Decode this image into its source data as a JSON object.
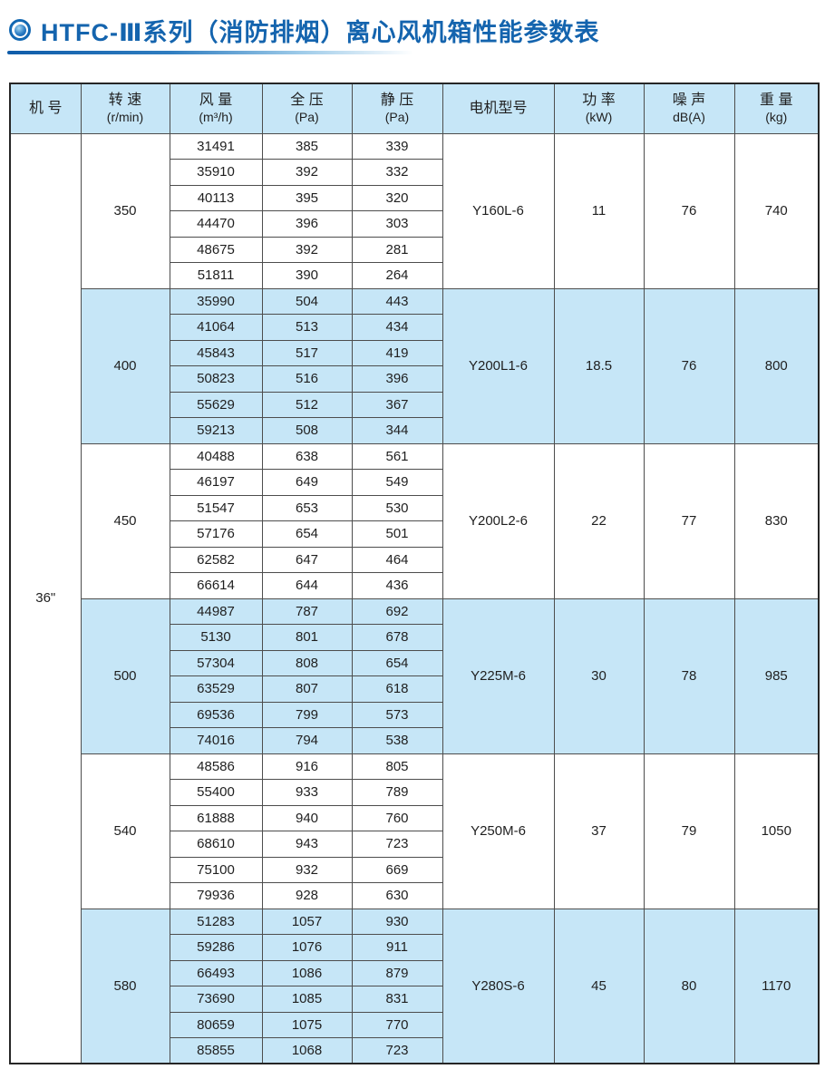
{
  "title": {
    "icon": "concentric-circle-bullet-icon",
    "text": "HTFC-Ⅲ系列（消防排烟）离心风机箱性能参数表"
  },
  "colors": {
    "accent_blue": "#1464ae",
    "band_blue": "#c6e6f7",
    "grid_line": "#4d4d4d"
  },
  "table": {
    "headers": [
      {
        "line1": "机 号",
        "line2": ""
      },
      {
        "line1": "转 速",
        "line2": "(r/min)"
      },
      {
        "line1": "风 量",
        "line2": "(m³/h)"
      },
      {
        "line1": "全 压",
        "line2": "(Pa)"
      },
      {
        "line1": "静 压",
        "line2": "(Pa)"
      },
      {
        "line1": "电机型号",
        "line2": ""
      },
      {
        "line1": "功 率",
        "line2": "(kW)"
      },
      {
        "line1": "噪 声",
        "line2": "dB(A)"
      },
      {
        "line1": "重 量",
        "line2": "(kg)"
      }
    ],
    "machine_no": "36\"",
    "groups": [
      {
        "speed": "350",
        "motor": "Y160L-6",
        "power": "11",
        "noise": "76",
        "weight": "740",
        "shaded": false,
        "rows": [
          [
            31491,
            385,
            339
          ],
          [
            35910,
            392,
            332
          ],
          [
            40113,
            395,
            320
          ],
          [
            44470,
            396,
            303
          ],
          [
            48675,
            392,
            281
          ],
          [
            51811,
            390,
            264
          ]
        ]
      },
      {
        "speed": "400",
        "motor": "Y200L1-6",
        "power": "18.5",
        "noise": "76",
        "weight": "800",
        "shaded": true,
        "rows": [
          [
            35990,
            504,
            443
          ],
          [
            41064,
            513,
            434
          ],
          [
            45843,
            517,
            419
          ],
          [
            50823,
            516,
            396
          ],
          [
            55629,
            512,
            367
          ],
          [
            59213,
            508,
            344
          ]
        ]
      },
      {
        "speed": "450",
        "motor": "Y200L2-6",
        "power": "22",
        "noise": "77",
        "weight": "830",
        "shaded": false,
        "rows": [
          [
            40488,
            638,
            561
          ],
          [
            46197,
            649,
            549
          ],
          [
            51547,
            653,
            530
          ],
          [
            57176,
            654,
            501
          ],
          [
            62582,
            647,
            464
          ],
          [
            66614,
            644,
            436
          ]
        ]
      },
      {
        "speed": "500",
        "motor": "Y225M-6",
        "power": "30",
        "noise": "78",
        "weight": "985",
        "shaded": true,
        "rows": [
          [
            44987,
            787,
            692
          ],
          [
            5130,
            801,
            678
          ],
          [
            57304,
            808,
            654
          ],
          [
            63529,
            807,
            618
          ],
          [
            69536,
            799,
            573
          ],
          [
            74016,
            794,
            538
          ]
        ]
      },
      {
        "speed": "540",
        "motor": "Y250M-6",
        "power": "37",
        "noise": "79",
        "weight": "1050",
        "shaded": false,
        "rows": [
          [
            48586,
            916,
            805
          ],
          [
            55400,
            933,
            789
          ],
          [
            61888,
            940,
            760
          ],
          [
            68610,
            943,
            723
          ],
          [
            75100,
            932,
            669
          ],
          [
            79936,
            928,
            630
          ]
        ]
      },
      {
        "speed": "580",
        "motor": "Y280S-6",
        "power": "45",
        "noise": "80",
        "weight": "1170",
        "shaded": true,
        "rows": [
          [
            51283,
            1057,
            930
          ],
          [
            59286,
            1076,
            911
          ],
          [
            66493,
            1086,
            879
          ],
          [
            73690,
            1085,
            831
          ],
          [
            80659,
            1075,
            770
          ],
          [
            85855,
            1068,
            723
          ]
        ]
      }
    ]
  }
}
